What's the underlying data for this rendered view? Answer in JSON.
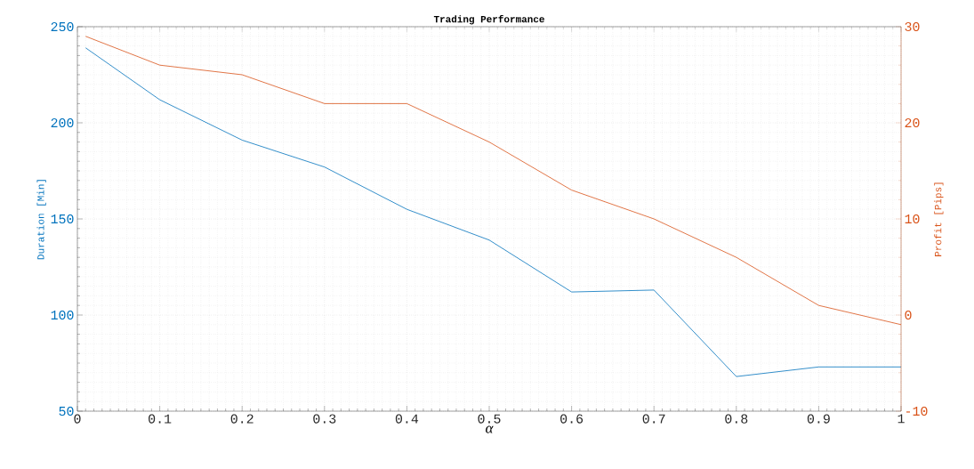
{
  "chart_data": {
    "type": "line",
    "title": "Trading Performance",
    "xlabel": "α",
    "ylabel": "Duration [Min]",
    "y2label": "Profit [Pips]",
    "x": [
      0.01,
      0.1,
      0.2,
      0.3,
      0.4,
      0.5,
      0.6,
      0.7,
      0.8,
      0.9,
      1.0
    ],
    "series": [
      {
        "color": "#0072bd",
        "values": [
          239,
          212,
          191,
          177,
          155,
          139,
          112,
          113,
          68,
          73,
          73
        ]
      },
      {
        "color": "#d95319",
        "axis": "y2",
        "values": [
          29,
          26,
          25,
          22,
          22,
          18,
          13,
          10,
          6,
          1,
          -1
        ]
      }
    ],
    "xlim": [
      0,
      1
    ],
    "xticks": [
      0,
      0.1,
      0.2,
      0.3,
      0.4,
      0.5,
      0.6,
      0.7,
      0.8,
      0.9,
      1
    ],
    "ylim": [
      50,
      250
    ],
    "yticks": [
      50,
      100,
      150,
      200,
      250
    ],
    "y2lim": [
      -10,
      30
    ],
    "y2ticks": [
      -10,
      0,
      10,
      20,
      30
    ],
    "grid": true
  }
}
